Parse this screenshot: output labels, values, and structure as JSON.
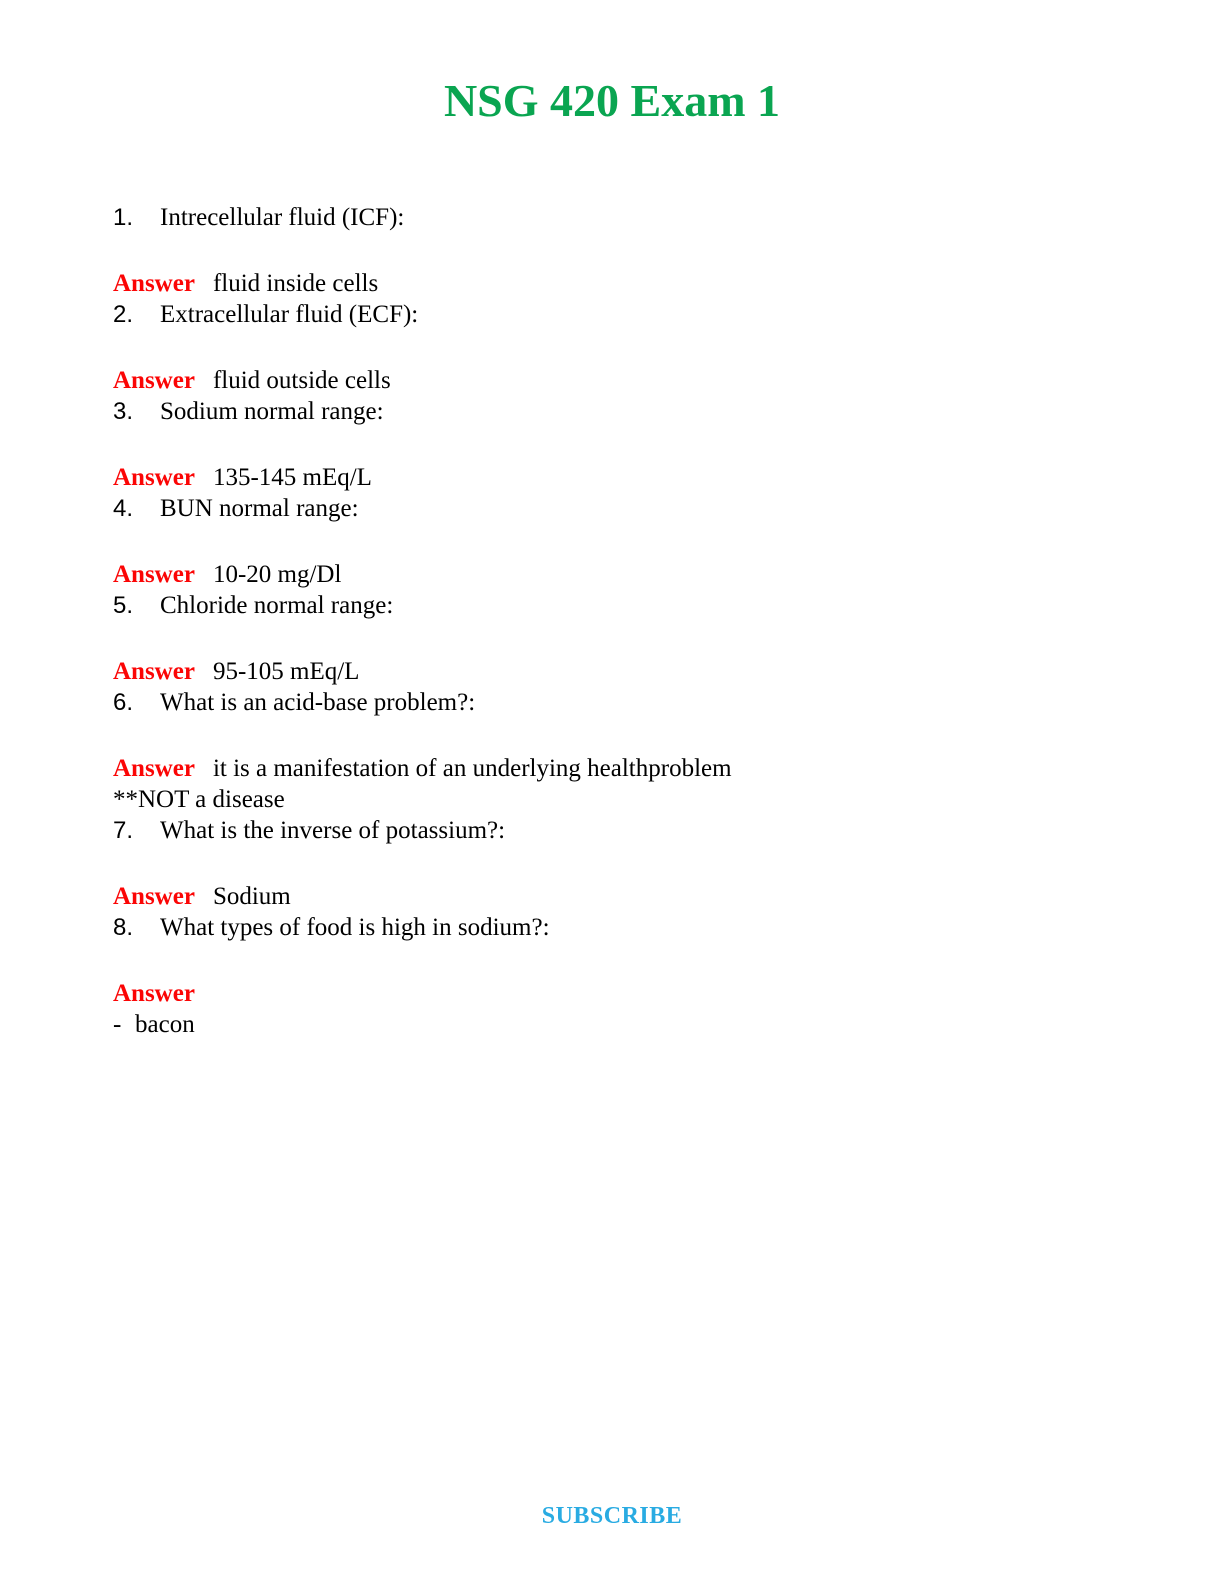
{
  "page": {
    "title": "NSG 420 Exam 1",
    "title_color": "#0aa551",
    "answer_label": "Answer",
    "answer_color": "#fb0505",
    "subscribe_label": "SUBSCRIBE",
    "subscribe_color": "#29abe2"
  },
  "questions": [
    {
      "number": "1.",
      "text": "Intrecellular fluid (ICF):",
      "answer": "fluid inside cells"
    },
    {
      "number": "2.",
      "text": "Extracellular fluid (ECF):",
      "answer": "fluid outside cells"
    },
    {
      "number": "3.",
      "text": "Sodium normal range:",
      "answer": "135-145 mEq/L"
    },
    {
      "number": "4.",
      "text": "BUN normal range:",
      "answer": "10-20 mg/Dl"
    },
    {
      "number": "5.",
      "text": "Chloride normal range:",
      "answer": "95-105 mEq/L"
    },
    {
      "number": "6.",
      "text": "What is an acid-base problem?:",
      "answer": "it is a manifestation of an underlying healthproblem",
      "answer_note": "**NOT a disease"
    },
    {
      "number": "7.",
      "text": "What is the inverse of potassium?:",
      "answer": "Sodium"
    },
    {
      "number": "8.",
      "text": "What types of food is high in sodium?:",
      "answer": "",
      "answer_items": [
        "bacon"
      ]
    }
  ]
}
